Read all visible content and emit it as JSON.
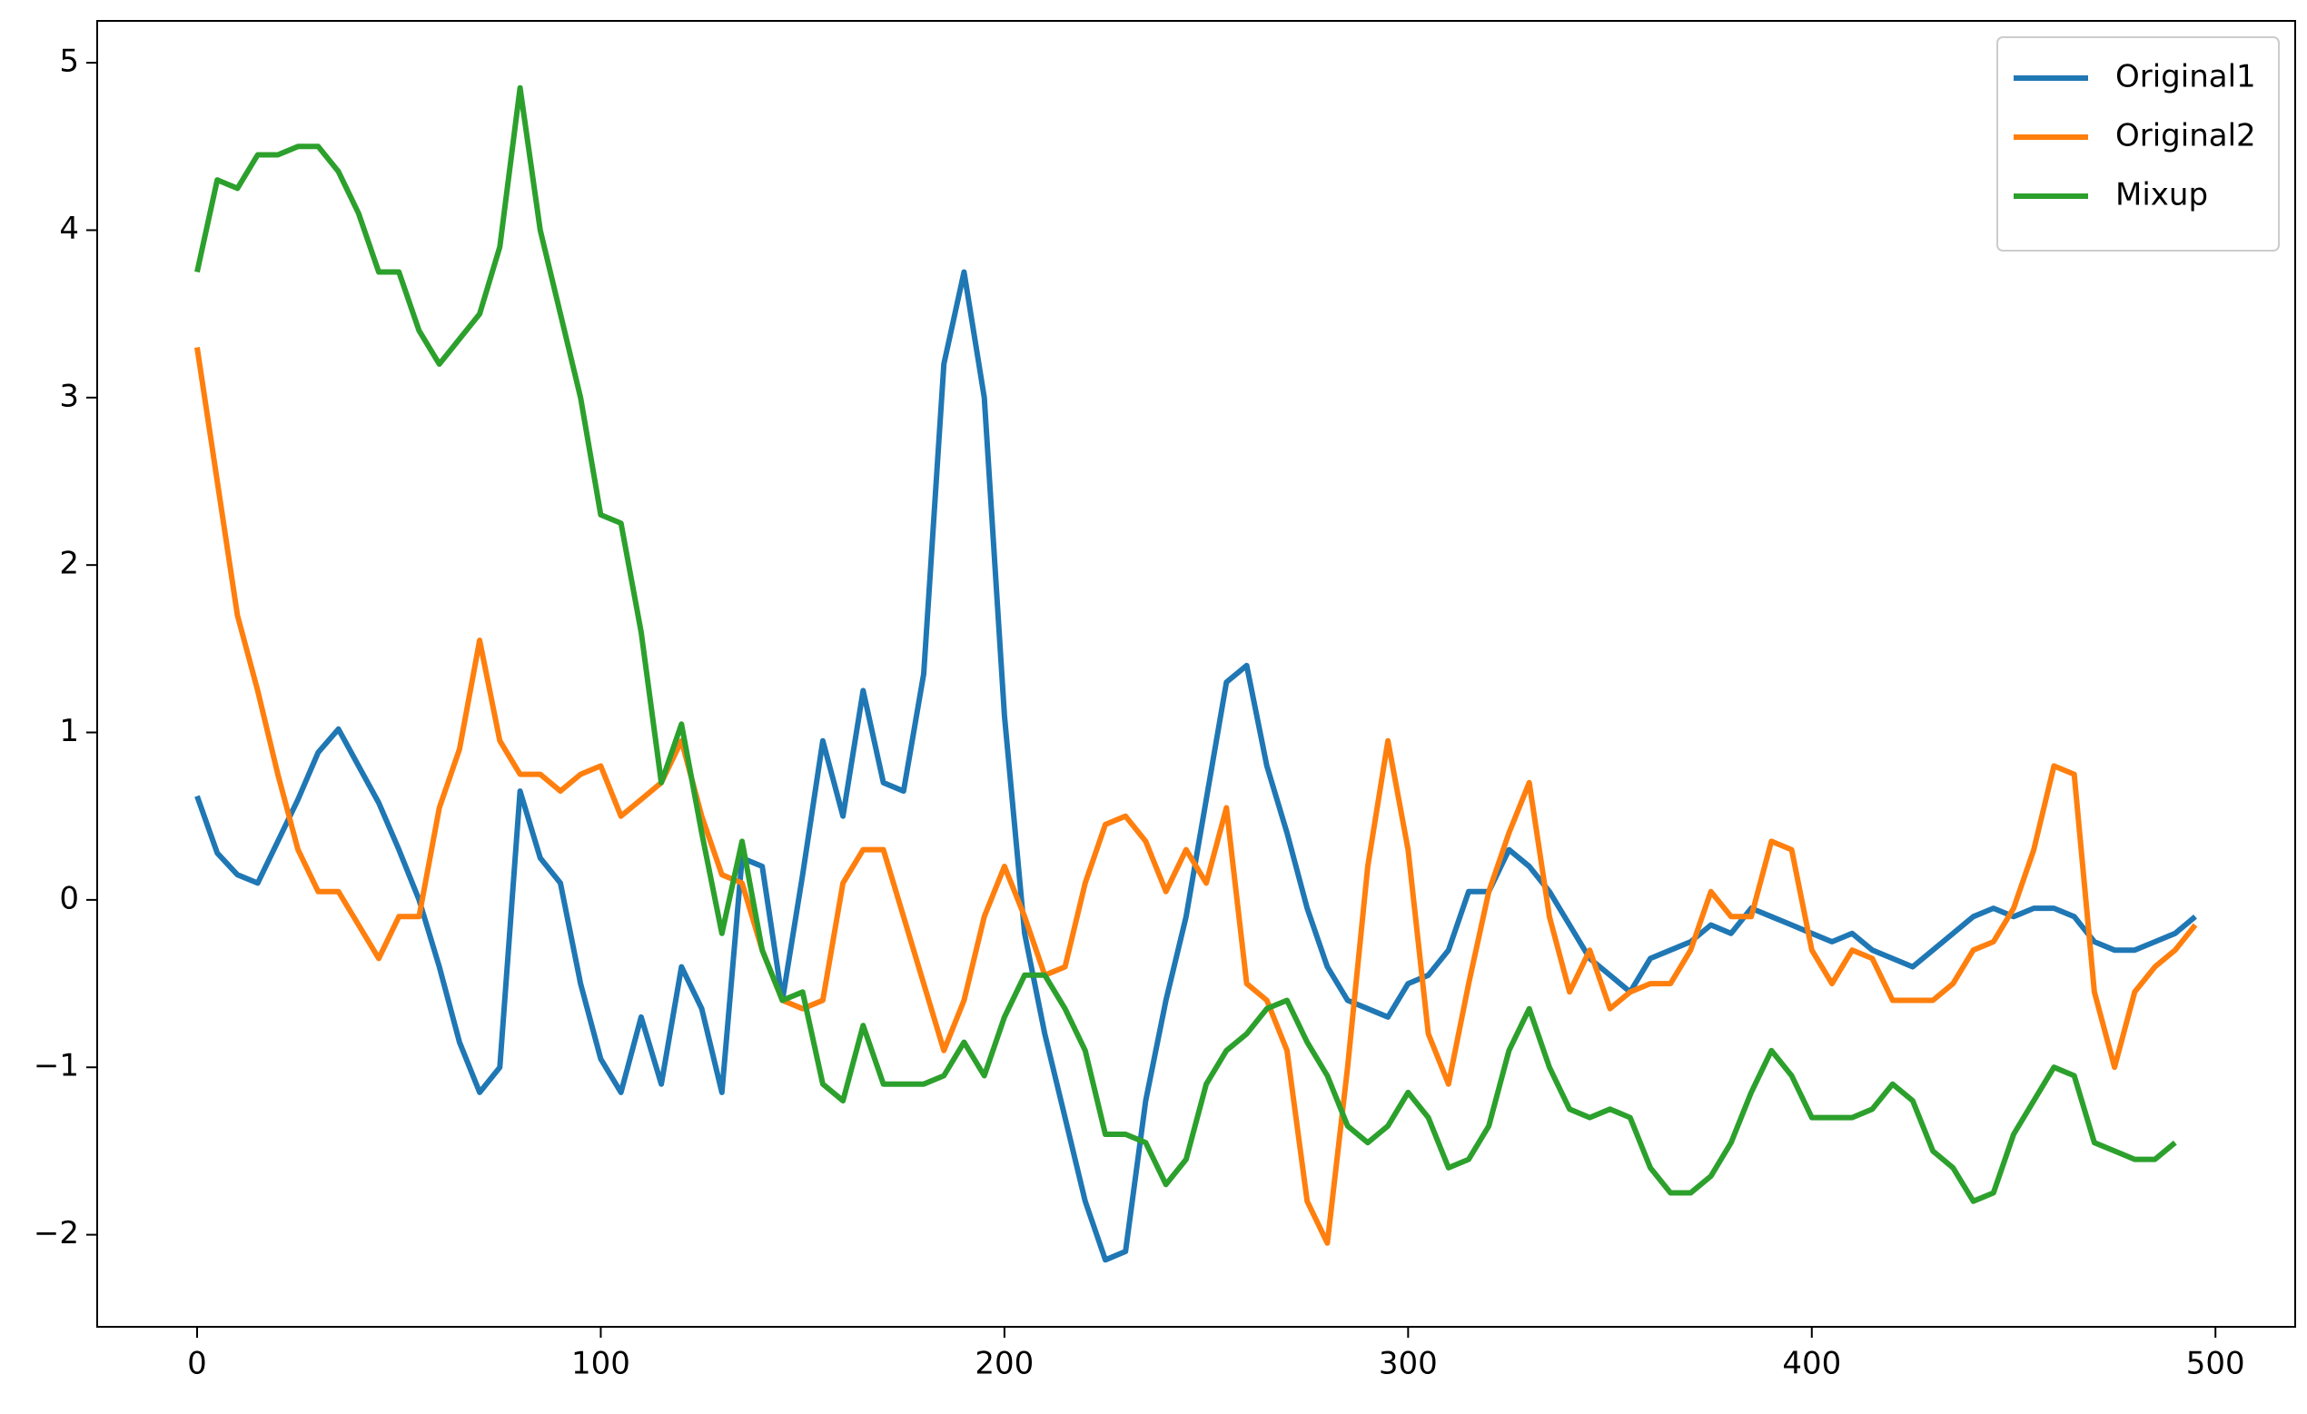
{
  "chart_data": {
    "type": "line",
    "x": [
      0,
      5,
      10,
      15,
      20,
      25,
      30,
      35,
      40,
      45,
      50,
      55,
      60,
      65,
      70,
      75,
      80,
      85,
      90,
      95,
      100,
      105,
      110,
      115,
      120,
      125,
      130,
      135,
      140,
      145,
      150,
      155,
      160,
      165,
      170,
      175,
      180,
      185,
      190,
      195,
      200,
      205,
      210,
      215,
      220,
      225,
      230,
      235,
      240,
      245,
      250,
      255,
      260,
      265,
      270,
      275,
      280,
      285,
      290,
      295,
      300,
      305,
      310,
      315,
      320,
      325,
      330,
      335,
      340,
      345,
      350,
      355,
      360,
      365,
      370,
      375,
      380,
      385,
      390,
      395,
      400,
      405,
      410,
      415,
      420,
      425,
      430,
      435,
      440,
      445,
      450,
      455,
      460,
      465,
      470,
      475,
      480,
      485,
      490,
      495
    ],
    "series": [
      {
        "name": "Original1",
        "color": "#1f77b4",
        "values": [
          0.62,
          0.28,
          0.15,
          0.1,
          0.35,
          0.6,
          0.88,
          1.02,
          0.8,
          0.58,
          0.3,
          0.0,
          -0.4,
          -0.85,
          -1.15,
          -1.0,
          0.65,
          0.25,
          0.1,
          -0.5,
          -0.95,
          -1.15,
          -0.7,
          -1.1,
          -0.4,
          -0.65,
          -1.15,
          0.25,
          0.2,
          -0.6,
          0.15,
          0.95,
          0.5,
          1.25,
          0.7,
          0.65,
          1.35,
          3.2,
          3.75,
          3.0,
          1.1,
          -0.2,
          -0.8,
          -1.3,
          -1.8,
          -2.15,
          -2.1,
          -1.2,
          -0.6,
          -0.1,
          0.6,
          1.3,
          1.4,
          0.8,
          0.4,
          -0.05,
          -0.4,
          -0.6,
          -0.65,
          -0.7,
          -0.5,
          -0.45,
          -0.3,
          0.05,
          0.05,
          0.3,
          0.2,
          0.05,
          -0.15,
          -0.35,
          -0.45,
          -0.55,
          -0.35,
          -0.3,
          -0.25,
          -0.15,
          -0.2,
          -0.05,
          -0.1,
          -0.15,
          -0.2,
          -0.25,
          -0.2,
          -0.3,
          -0.35,
          -0.4,
          -0.3,
          -0.2,
          -0.1,
          -0.05,
          -0.1,
          -0.05,
          -0.05,
          -0.1,
          -0.25,
          -0.3,
          -0.3,
          -0.25,
          -0.2,
          -0.1
        ]
      },
      {
        "name": "Original2",
        "color": "#ff7f0e",
        "values": [
          3.3,
          2.5,
          1.7,
          1.25,
          0.75,
          0.3,
          0.05,
          0.05,
          -0.15,
          -0.35,
          -0.1,
          -0.1,
          0.55,
          0.9,
          1.55,
          0.95,
          0.75,
          0.75,
          0.65,
          0.75,
          0.8,
          0.5,
          0.6,
          0.7,
          0.95,
          0.5,
          0.15,
          0.1,
          -0.3,
          -0.6,
          -0.65,
          -0.6,
          0.1,
          0.3,
          0.3,
          -0.1,
          -0.5,
          -0.9,
          -0.6,
          -0.1,
          0.2,
          -0.1,
          -0.45,
          -0.4,
          0.1,
          0.45,
          0.5,
          0.35,
          0.05,
          0.3,
          0.1,
          0.55,
          -0.5,
          -0.6,
          -0.9,
          -1.8,
          -2.05,
          -1.0,
          0.2,
          0.95,
          0.3,
          -0.8,
          -1.1,
          -0.5,
          0.05,
          0.4,
          0.7,
          -0.1,
          -0.55,
          -0.3,
          -0.65,
          -0.55,
          -0.5,
          -0.5,
          -0.3,
          0.05,
          -0.1,
          -0.1,
          0.35,
          0.3,
          -0.3,
          -0.5,
          -0.3,
          -0.35,
          -0.6,
          -0.6,
          -0.6,
          -0.5,
          -0.3,
          -0.25,
          -0.05,
          0.3,
          0.8,
          0.75,
          -0.55,
          -1.0,
          -0.55,
          -0.4,
          -0.3,
          -0.15
        ]
      },
      {
        "name": "Mixup",
        "color": "#2ca02c",
        "values": [
          3.75,
          4.3,
          4.25,
          4.45,
          4.45,
          4.5,
          4.5,
          4.35,
          4.1,
          3.75,
          3.75,
          3.4,
          3.2,
          3.35,
          3.5,
          3.9,
          4.85,
          4.0,
          3.5,
          3.0,
          2.3,
          2.25,
          1.6,
          0.7,
          1.05,
          0.4,
          -0.2,
          0.35,
          -0.3,
          -0.6,
          -0.55,
          -1.1,
          -1.2,
          -0.75,
          -1.1,
          -1.1,
          -1.1,
          -1.05,
          -0.85,
          -1.05,
          -0.7,
          -0.45,
          -0.45,
          -0.65,
          -0.9,
          -1.4,
          -1.4,
          -1.45,
          -1.7,
          -1.55,
          -1.1,
          -0.9,
          -0.8,
          -0.65,
          -0.6,
          -0.85,
          -1.05,
          -1.35,
          -1.45,
          -1.35,
          -1.15,
          -1.3,
          -1.6,
          -1.55,
          -1.35,
          -0.9,
          -0.65,
          -1.0,
          -1.25,
          -1.3,
          -1.25,
          -1.3,
          -1.6,
          -1.75,
          -1.75,
          -1.65,
          -1.45,
          -1.15,
          -0.9,
          -1.05,
          -1.3,
          -1.3,
          -1.3,
          -1.25,
          -1.1,
          -1.2,
          -1.5,
          -1.6,
          -1.8,
          -1.75,
          -1.4,
          -1.2,
          -1.0,
          -1.05,
          -1.45,
          -1.5,
          -1.55,
          -1.55,
          -1.45,
          null
        ]
      }
    ],
    "xlim": [
      -24.75,
      519.75
    ],
    "ylim": [
      -2.55,
      5.25
    ],
    "xticks": [
      0,
      100,
      200,
      300,
      400,
      500
    ],
    "yticks": [
      {
        "value": -2,
        "label": "−2"
      },
      {
        "value": -1,
        "label": "−1"
      },
      0,
      1,
      2,
      3,
      4,
      5
    ],
    "legend": "upper right"
  }
}
